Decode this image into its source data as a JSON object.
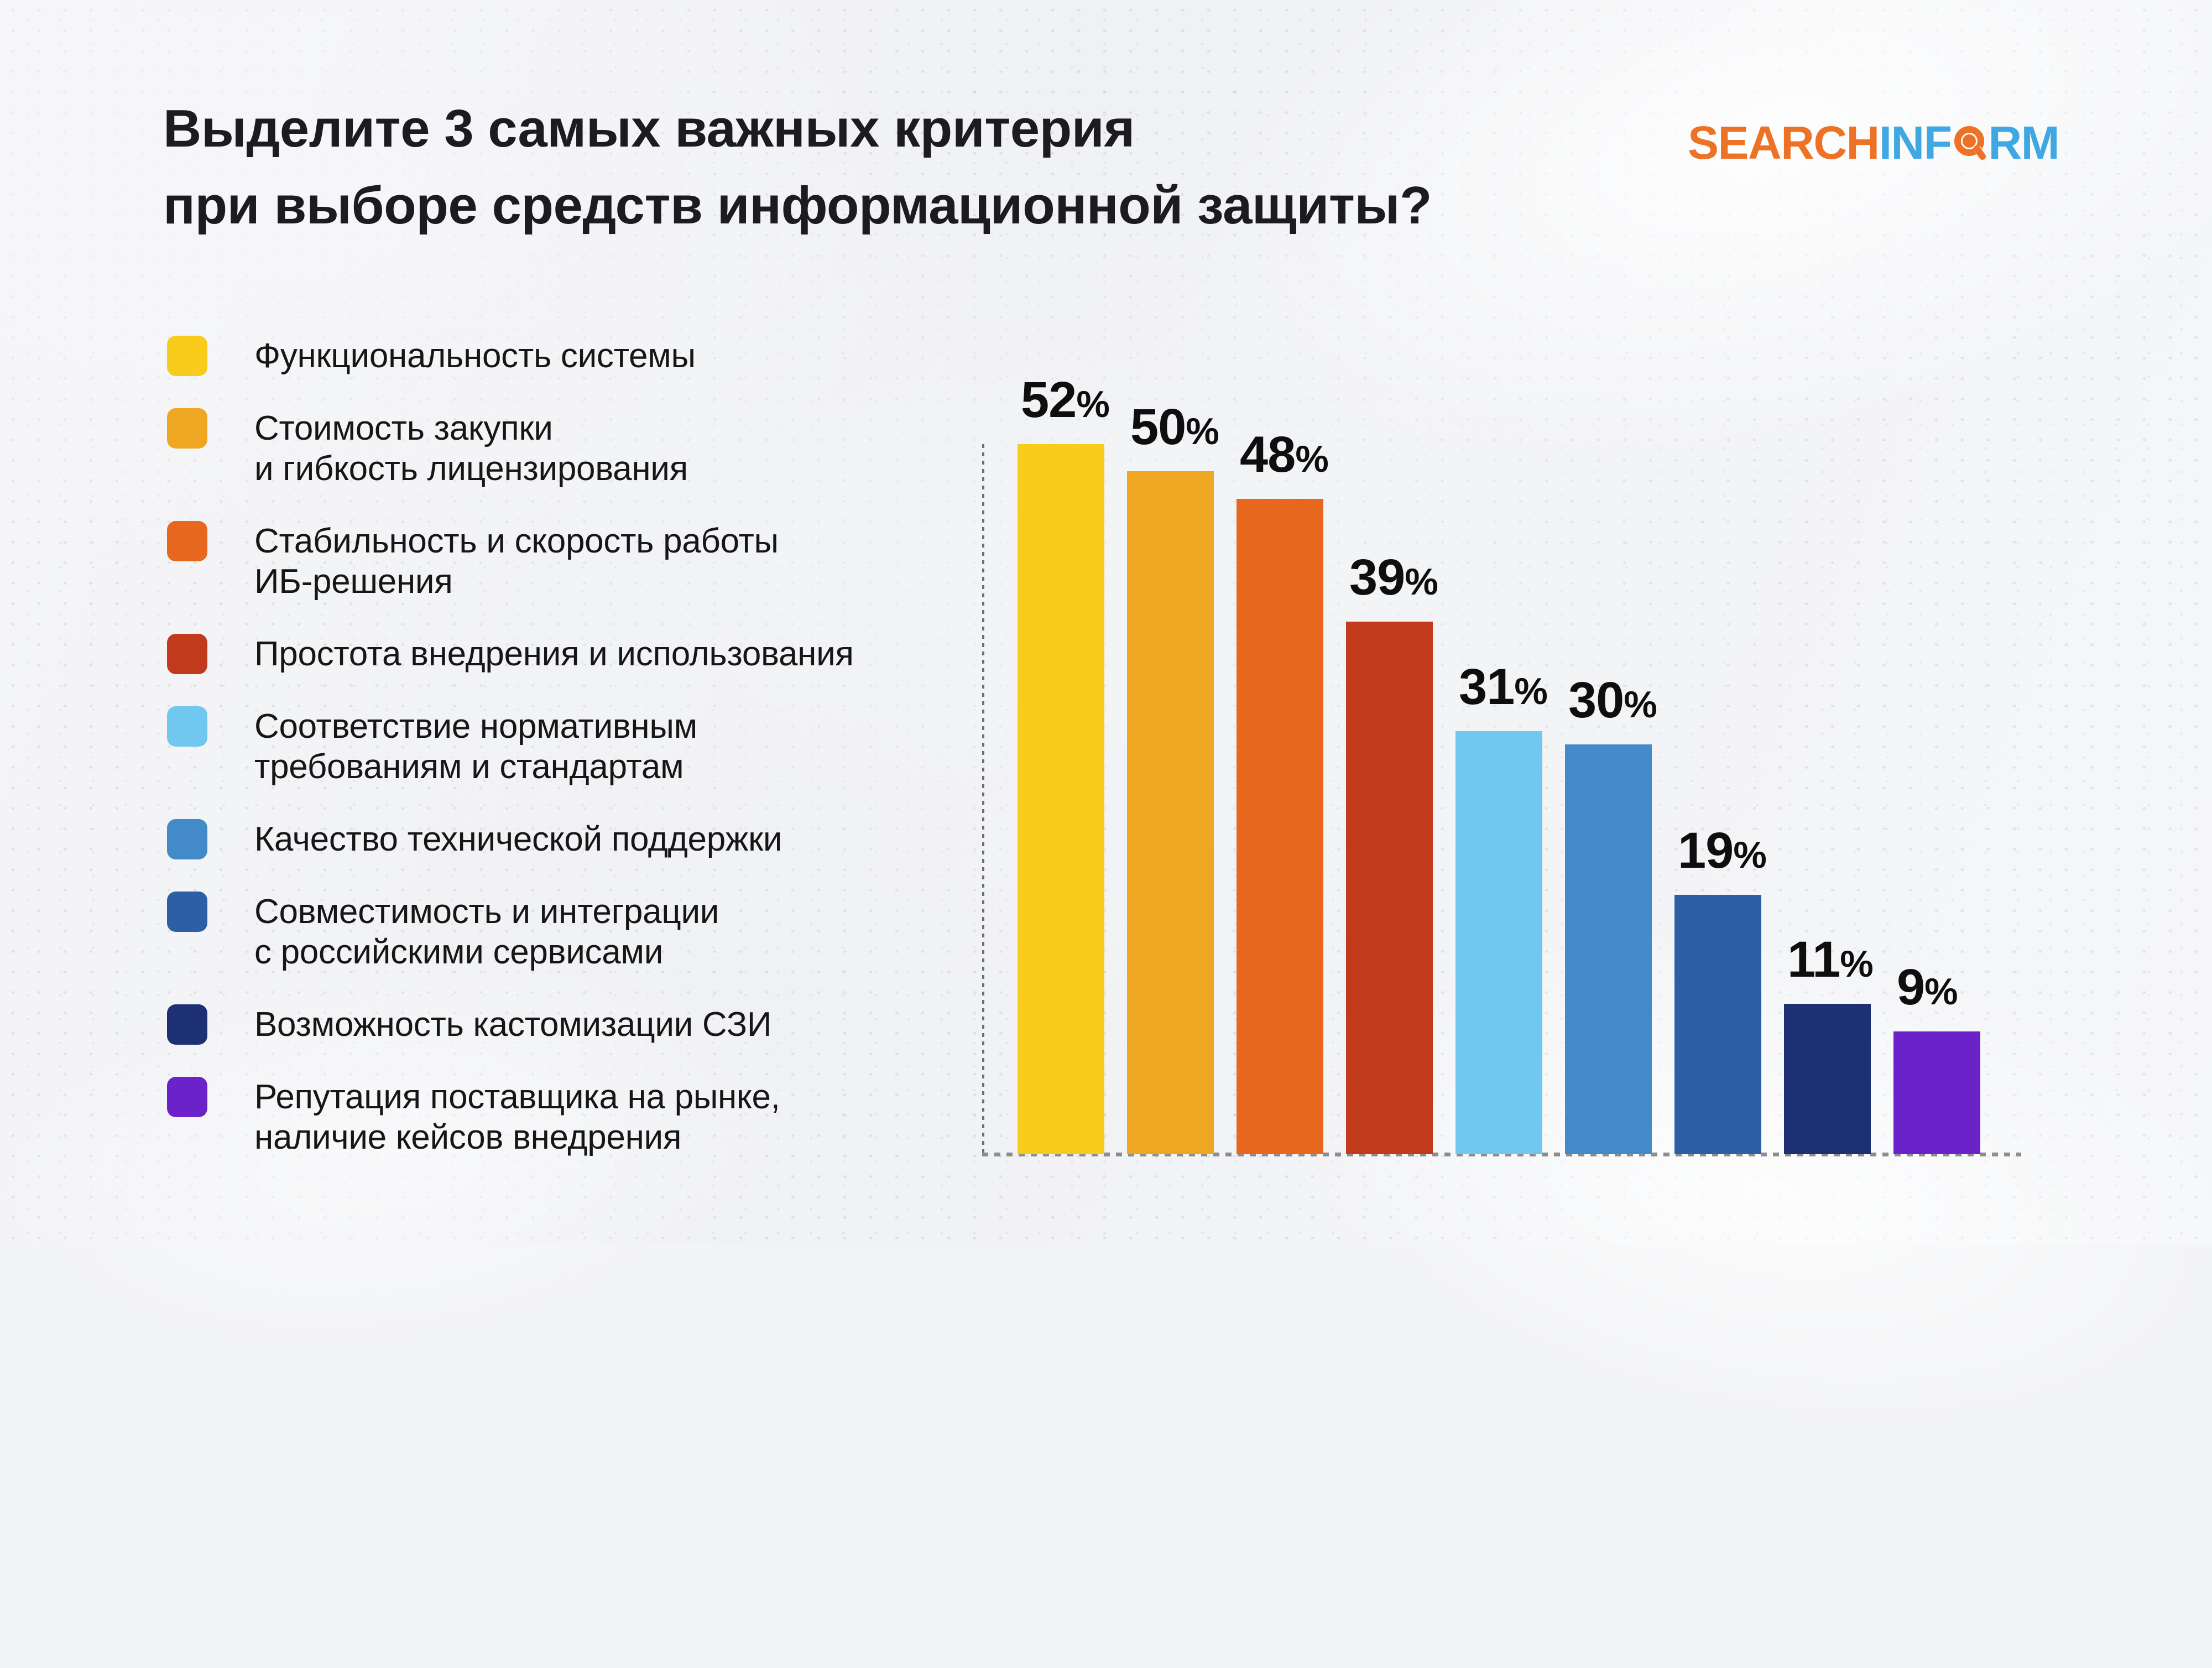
{
  "title": {
    "line1": "Выделите 3 самых важных критерия",
    "line2": "при выборе средств информационной защиты?"
  },
  "logo": {
    "search": "SEARCH",
    "inf": "INF",
    "rm": "RM",
    "orange": "#EE7225",
    "blue": "#3FA7E1"
  },
  "legend": {
    "items": [
      {
        "color": "#F9CC1C",
        "lines": [
          "Функциональность системы"
        ]
      },
      {
        "color": "#EFA620",
        "lines": [
          "Стоимость закупки",
          "и гибкость лицензирования"
        ]
      },
      {
        "color": "#E8671F",
        "lines": [
          "Стабильность и скорость работы",
          "ИБ-решения"
        ]
      },
      {
        "color": "#C13A1C",
        "lines": [
          "Простота внедрения и использования"
        ]
      },
      {
        "color": "#70C7EF",
        "lines": [
          "Соответствие нормативным",
          "требованиям и стандартам"
        ]
      },
      {
        "color": "#428AC8",
        "lines": [
          "Качество технической поддержки"
        ]
      },
      {
        "color": "#2D5FA7",
        "lines": [
          "Совместимость и интеграции",
          "с российскими сервисами"
        ]
      },
      {
        "color": "#1E3074",
        "lines": [
          "Возможность кастомизации СЗИ"
        ]
      },
      {
        "color": "#6C22C9",
        "lines": [
          "Репутация поставщика на рынке,",
          "наличие кейсов внедрения"
        ]
      }
    ]
  },
  "chart_data": {
    "type": "bar",
    "title": "Выделите 3 самых важных критерия при выборе средств информационной защиты?",
    "unit": "%",
    "categories": [
      "Функциональность системы",
      "Стоимость закупки и гибкость лицензирования",
      "Стабильность и скорость работы ИБ-решения",
      "Простота внедрения и использования",
      "Соответствие нормативным требованиям и стандартам",
      "Качество технической поддержки",
      "Совместимость и интеграции с российскими сервисами",
      "Возможность кастомизации СЗИ",
      "Репутация поставщика на рынке, наличие кейсов внедрения"
    ],
    "values": [
      52,
      50,
      48,
      39,
      31,
      30,
      19,
      11,
      9
    ],
    "colors": [
      "#F9CC1C",
      "#EFA620",
      "#E8671F",
      "#C13A1C",
      "#70C7EF",
      "#428AC8",
      "#2D5FA7",
      "#1E3074",
      "#6C22C9"
    ],
    "value_labels": [
      "52%",
      "50%",
      "48%",
      "39%",
      "31%",
      "30%",
      "19%",
      "11%",
      "9%"
    ],
    "ylim": [
      0,
      52
    ],
    "grid": false,
    "legend_position": "left",
    "axis_style": "dashed left axis and dashed baseline, no tick labels"
  },
  "style": {
    "background": "#f2f3f5",
    "text_color": "#1a1a1a",
    "axis_color": "#8d8d8d"
  }
}
